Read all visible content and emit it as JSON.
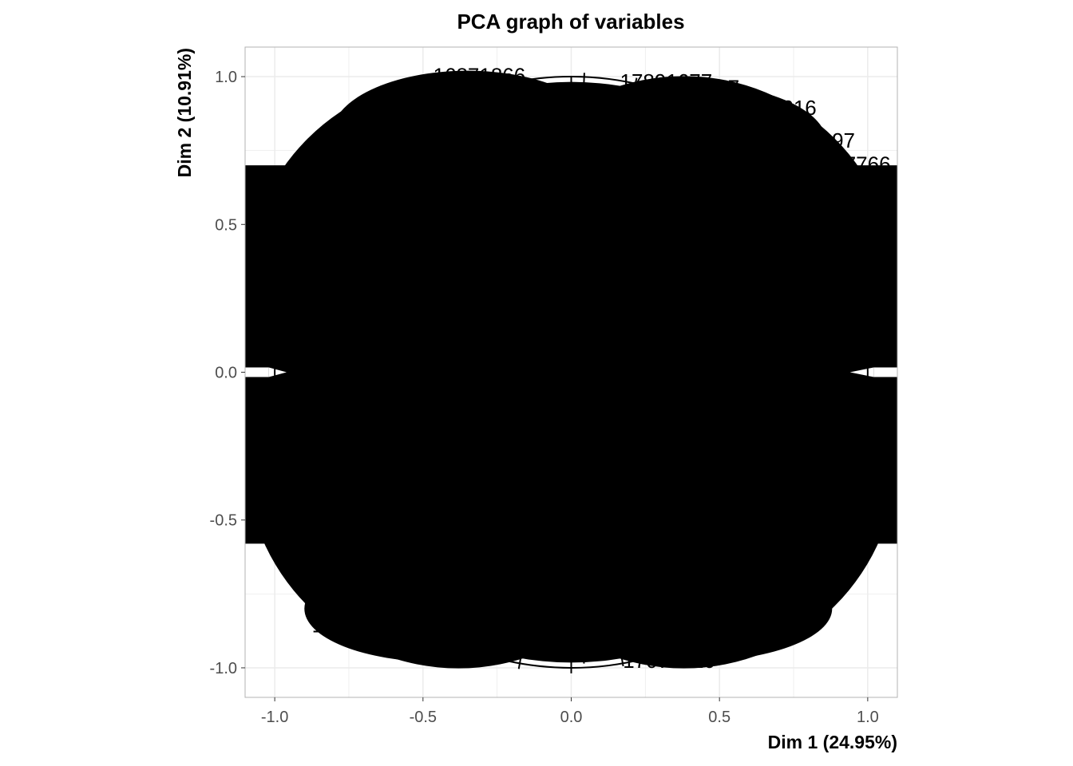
{
  "chart_data": {
    "type": "scatter",
    "title": "PCA graph of variables",
    "xlabel": "Dim 1 (24.95%)",
    "ylabel": "Dim 2 (10.91%)",
    "xlim": [
      -1.1,
      1.1
    ],
    "ylim": [
      -1.1,
      1.1
    ],
    "x_ticks": [
      -1.0,
      -0.5,
      0.0,
      0.5,
      1.0
    ],
    "y_ticks": [
      -1.0,
      -0.5,
      0.0,
      0.5,
      1.0
    ],
    "x_tick_labels": [
      "-1.0",
      "-0.5",
      "0.0",
      "0.5",
      "1.0"
    ],
    "y_tick_labels": [
      "-1.0",
      "-0.5",
      "0.0",
      "0.5",
      "1.0"
    ],
    "grid": true,
    "correlation_circle": true,
    "legend": "none",
    "visible_labels": [
      {
        "text": "16871866",
        "x": -0.31,
        "y": 0.98
      },
      {
        "text": "17891677",
        "x": 0.32,
        "y": 0.96
      },
      {
        "text": "16357",
        "x": 0.47,
        "y": 0.94
      },
      {
        "text": "17616",
        "x": 0.73,
        "y": 0.87
      },
      {
        "text": "16397",
        "x": 0.86,
        "y": 0.76
      },
      {
        "text": "17766",
        "x": 0.98,
        "y": 0.68
      },
      {
        "text": "16711",
        "x": -0.78,
        "y": -0.88
      },
      {
        "text": "17071820",
        "x": 0.33,
        "y": -1.0
      }
    ],
    "colors": {
      "ink": "#000000",
      "grid": "#ebebeb",
      "panel_border": "#b3b3b3",
      "tick_text": "#4d4d4d"
    }
  }
}
